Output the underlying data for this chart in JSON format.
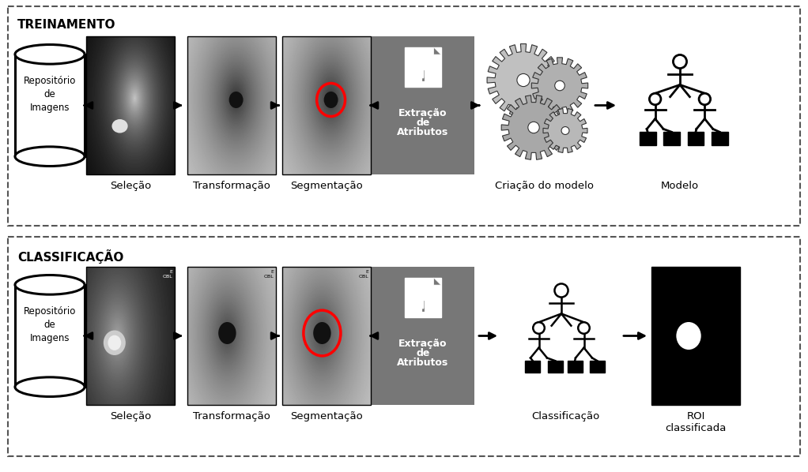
{
  "bg_color": "#ffffff",
  "top_label": "TREINAMENTO",
  "bottom_label": "CLASSIFICAÇÃO",
  "top_steps": [
    "Seleção",
    "Transformação",
    "Segmentação",
    "",
    "Criação do modelo",
    "Modelo"
  ],
  "bottom_steps": [
    "Seleção",
    "Transformação",
    "Segmentação",
    "",
    "Classificação",
    "ROI\nclassificada"
  ],
  "gray_box_text_lines": [
    "Extração",
    "de",
    "Atributos"
  ],
  "cyl_text": "Repositório\nde\nImagens",
  "dashed_color": "#555555",
  "gray_box_color": "#777777",
  "label_fontsize": 9.5,
  "panel_label_fontsize": 11
}
